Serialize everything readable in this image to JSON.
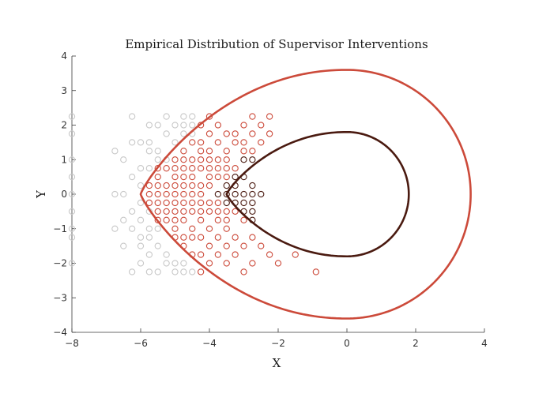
{
  "chart_data": {
    "type": "scatter",
    "title": "Empirical Distribution of Supervisor Interventions",
    "xlabel": "X",
    "ylabel": "Y",
    "xlim": [
      -8,
      4
    ],
    "ylim": [
      -4,
      4
    ],
    "xticks": [
      -8,
      -6,
      -4,
      -2,
      0,
      2,
      4
    ],
    "yticks": [
      -4,
      -3,
      -2,
      -1,
      0,
      1,
      2,
      3,
      4
    ],
    "grid": false,
    "legend": "none",
    "colors": {
      "light": "#c8c8c8",
      "medium": "#cc4a3a",
      "dark": "#4a1a10",
      "outer_contour": "#cc4a3a",
      "inner_contour": "#4a1a10"
    },
    "contours": [
      {
        "name": "outer",
        "color": "outer_contour",
        "cx": 0,
        "cy": 0,
        "rx_right": 3.6,
        "rx_left": 6,
        "ry": 3.6
      },
      {
        "name": "inner",
        "color": "inner_contour",
        "cx": 0,
        "cy": 0,
        "rx_right": 1.8,
        "rx_left": 3.5,
        "ry": 1.8
      }
    ],
    "series": [
      {
        "color": "light",
        "points": [
          [
            -8,
            2.25
          ],
          [
            -8,
            1.75
          ],
          [
            -8,
            1
          ],
          [
            -8,
            0.5
          ],
          [
            -8,
            0
          ],
          [
            -8,
            -0.5
          ],
          [
            -8,
            -1
          ],
          [
            -8,
            -1.25
          ],
          [
            -8,
            -2
          ],
          [
            -6.25,
            2.25
          ],
          [
            -6.25,
            1.5
          ],
          [
            -6,
            1.5
          ],
          [
            -6,
            0.75
          ],
          [
            -6,
            0.25
          ],
          [
            -6,
            -0.25
          ],
          [
            -6,
            -0.75
          ],
          [
            -6,
            -1.25
          ],
          [
            -6,
            -1.5
          ],
          [
            -6,
            -2
          ],
          [
            -6.5,
            1
          ],
          [
            -6.5,
            0
          ],
          [
            -6.5,
            -0.75
          ],
          [
            -6.5,
            -1.5
          ],
          [
            -6.25,
            -2.25
          ],
          [
            -5.75,
            2
          ],
          [
            -5.75,
            1.5
          ],
          [
            -5.75,
            1.25
          ],
          [
            -5.75,
            0.75
          ],
          [
            -5.75,
            -0.5
          ],
          [
            -5.75,
            -1
          ],
          [
            -5.75,
            -1.25
          ],
          [
            -5.75,
            -1.75
          ],
          [
            -5.75,
            -2.25
          ],
          [
            -5.5,
            2
          ],
          [
            -5.5,
            1.25
          ],
          [
            -5.5,
            1
          ],
          [
            -5.5,
            -1
          ],
          [
            -5.5,
            -1.5
          ],
          [
            -5.5,
            -2.25
          ],
          [
            -5.25,
            2.25
          ],
          [
            -5.25,
            1.75
          ],
          [
            -5.25,
            1
          ],
          [
            -5.25,
            -1.75
          ],
          [
            -5.25,
            -2
          ],
          [
            -5,
            2
          ],
          [
            -5,
            1.5
          ],
          [
            -5,
            -2
          ],
          [
            -5,
            -2.25
          ],
          [
            -4.75,
            2.25
          ],
          [
            -4.75,
            2
          ],
          [
            -4.75,
            1.75
          ],
          [
            -4.75,
            -2
          ],
          [
            -4.75,
            -2.25
          ],
          [
            -4.5,
            2.25
          ],
          [
            -4.5,
            2
          ],
          [
            -4.5,
            1.75
          ],
          [
            -4.5,
            -2.25
          ],
          [
            -6.75,
            1.25
          ],
          [
            -6.75,
            0
          ],
          [
            -6.75,
            -1
          ],
          [
            -6.25,
            0.5
          ],
          [
            -6.25,
            -0.5
          ],
          [
            -6.25,
            -1
          ]
        ]
      },
      {
        "color": "medium",
        "points": [
          [
            -5.5,
            0.5
          ],
          [
            -5.5,
            0.25
          ],
          [
            -5.5,
            0
          ],
          [
            -5.5,
            -0.25
          ],
          [
            -5.5,
            -0.5
          ],
          [
            -5.25,
            0.75
          ],
          [
            -5.25,
            0.25
          ],
          [
            -5.25,
            0
          ],
          [
            -5.25,
            -0.25
          ],
          [
            -5.25,
            -0.5
          ],
          [
            -5.25,
            -0.75
          ],
          [
            -5,
            1
          ],
          [
            -5,
            0.75
          ],
          [
            -5,
            0.5
          ],
          [
            -5,
            0
          ],
          [
            -5,
            -0.5
          ],
          [
            -5,
            -1
          ],
          [
            -5,
            -1.25
          ],
          [
            -4.75,
            1.25
          ],
          [
            -4.75,
            1
          ],
          [
            -4.75,
            0.5
          ],
          [
            -4.75,
            0.25
          ],
          [
            -4.75,
            -0.25
          ],
          [
            -4.75,
            -0.75
          ],
          [
            -4.75,
            -1.25
          ],
          [
            -4.75,
            -1.5
          ],
          [
            -4.5,
            1.5
          ],
          [
            -4.5,
            1
          ],
          [
            -4.5,
            0.5
          ],
          [
            -4.5,
            0.25
          ],
          [
            -4.5,
            0
          ],
          [
            -4.5,
            -0.5
          ],
          [
            -4.5,
            -1
          ],
          [
            -4.5,
            -1.25
          ],
          [
            -4.5,
            -1.75
          ],
          [
            -4.25,
            2
          ],
          [
            -4.25,
            1.5
          ],
          [
            -4.25,
            1.25
          ],
          [
            -4.25,
            0.75
          ],
          [
            -4.25,
            0.25
          ],
          [
            -4.25,
            -0.25
          ],
          [
            -4.25,
            -0.5
          ],
          [
            -4.25,
            -1.25
          ],
          [
            -4.25,
            -1.75
          ],
          [
            -4.25,
            -2.25
          ],
          [
            -4,
            2.25
          ],
          [
            -4,
            1.75
          ],
          [
            -4,
            1.25
          ],
          [
            -4,
            0.75
          ],
          [
            -4,
            0.5
          ],
          [
            -4,
            -0.5
          ],
          [
            -4,
            -1
          ],
          [
            -4,
            -1.5
          ],
          [
            -4,
            -2
          ],
          [
            -3.75,
            2
          ],
          [
            -3.75,
            1.5
          ],
          [
            -3.75,
            1
          ],
          [
            -3.75,
            0.5
          ],
          [
            -3.75,
            -0.25
          ],
          [
            -3.75,
            -0.75
          ],
          [
            -3.75,
            -1.25
          ],
          [
            -3.75,
            -1.75
          ],
          [
            -3.5,
            1.75
          ],
          [
            -3.5,
            1.25
          ],
          [
            -3.5,
            1
          ],
          [
            -3.5,
            0.5
          ],
          [
            -3.5,
            -0.5
          ],
          [
            -3.5,
            -1
          ],
          [
            -3.5,
            -1.5
          ],
          [
            -3.5,
            -2
          ],
          [
            -3.25,
            1.75
          ],
          [
            -3.25,
            1.5
          ],
          [
            -3.25,
            0.75
          ],
          [
            -3.25,
            -0.5
          ],
          [
            -3.25,
            -1.25
          ],
          [
            -3.25,
            -1.75
          ],
          [
            -3,
            2
          ],
          [
            -3,
            1.5
          ],
          [
            -3,
            1.25
          ],
          [
            -3,
            -0.75
          ],
          [
            -3,
            -1.5
          ],
          [
            -3,
            -2.25
          ],
          [
            -2.75,
            2.25
          ],
          [
            -2.75,
            1.75
          ],
          [
            -2.75,
            1.25
          ],
          [
            -2.75,
            -1.25
          ],
          [
            -2.75,
            -2
          ],
          [
            -2.5,
            2
          ],
          [
            -2.5,
            1.5
          ],
          [
            -2.5,
            -1.5
          ],
          [
            -2.25,
            2.25
          ],
          [
            -2.25,
            1.75
          ],
          [
            -2.25,
            -1.75
          ],
          [
            -2,
            -2
          ],
          [
            -1.5,
            -1.75
          ],
          [
            -0.9,
            -2.25
          ],
          [
            -5.75,
            0
          ],
          [
            -5.75,
            0.25
          ],
          [
            -5.75,
            -0.25
          ],
          [
            -5.5,
            0.75
          ],
          [
            -5.5,
            -0.75
          ],
          [
            -5,
            0.25
          ],
          [
            -5,
            -0.25
          ],
          [
            -5,
            -0.75
          ],
          [
            -4.75,
            0
          ],
          [
            -4.75,
            0.75
          ],
          [
            -4.75,
            -0.5
          ],
          [
            -4.5,
            0.75
          ],
          [
            -4.5,
            -0.25
          ],
          [
            -4.25,
            1
          ],
          [
            -4.25,
            0
          ],
          [
            -4.25,
            -0.75
          ],
          [
            -4,
            0.25
          ],
          [
            -4,
            -0.25
          ],
          [
            -4,
            1
          ],
          [
            -3.75,
            0.75
          ],
          [
            -3.75,
            -0.5
          ],
          [
            -3.5,
            0.75
          ],
          [
            -3.5,
            -0.75
          ]
        ]
      },
      {
        "color": "dark",
        "points": [
          [
            -3.75,
            0
          ],
          [
            -3.5,
            0.25
          ],
          [
            -3.5,
            0
          ],
          [
            -3.5,
            -0.25
          ],
          [
            -3.25,
            0.5
          ],
          [
            -3.25,
            0.25
          ],
          [
            -3.25,
            0
          ],
          [
            -3.25,
            -0.25
          ],
          [
            -3,
            1
          ],
          [
            -3,
            0.5
          ],
          [
            -3,
            0
          ],
          [
            -3,
            -0.25
          ],
          [
            -3,
            -0.5
          ],
          [
            -2.75,
            1
          ],
          [
            -2.75,
            0.25
          ],
          [
            -2.75,
            0
          ],
          [
            -2.75,
            -0.25
          ],
          [
            -2.75,
            -0.5
          ],
          [
            -2.75,
            -0.75
          ],
          [
            -2.5,
            0
          ]
        ]
      }
    ]
  }
}
